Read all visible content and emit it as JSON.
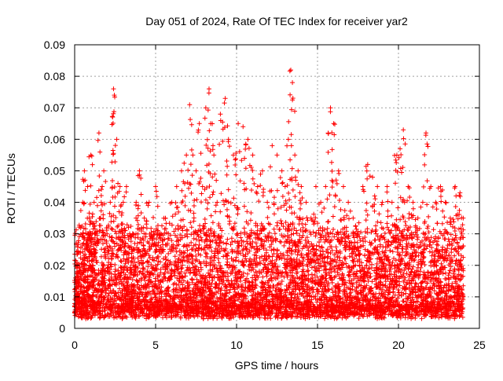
{
  "chart_data": {
    "type": "scatter",
    "title": "Day 051 of 2024, Rate Of TEC Index for receiver yar2",
    "xlabel": "GPS time / hours",
    "ylabel": "ROTI / TECUs",
    "xlim": [
      0,
      25
    ],
    "ylim": [
      0,
      0.09
    ],
    "x_ticks": [
      0,
      5,
      10,
      15,
      20,
      25
    ],
    "x_tick_labels": [
      "0",
      "5",
      "10",
      "15",
      "20",
      "25"
    ],
    "y_ticks": [
      0,
      0.01,
      0.02,
      0.03,
      0.04,
      0.05,
      0.06,
      0.07,
      0.08,
      0.09
    ],
    "y_tick_labels": [
      "0",
      "0.01",
      "0.02",
      "0.03",
      "0.04",
      "0.05",
      "0.06",
      "0.07",
      "0.08",
      "0.09"
    ],
    "grid": true,
    "marker": "plus",
    "color": "#ff0000",
    "series": [
      {
        "name": "ROTI",
        "x": [
          0.05,
          0.1,
          0.15,
          0.2,
          0.3,
          0.5,
          0.6,
          0.7,
          0.8,
          0.9,
          1.0,
          1.1,
          1.2,
          1.3,
          1.5,
          1.6,
          1.7,
          1.8,
          2.0,
          2.2,
          2.4,
          2.45,
          2.6,
          2.8,
          3.0,
          3.2,
          3.4,
          3.6,
          3.8,
          4.0,
          4.3,
          4.6,
          5.0,
          5.3,
          5.6,
          6.0,
          6.3,
          6.6,
          6.9,
          7.1,
          7.3,
          7.5,
          7.7,
          7.9,
          8.1,
          8.3,
          8.4,
          8.6,
          8.8,
          9.0,
          9.3,
          9.5,
          9.8,
          10.1,
          10.4,
          10.7,
          11.0,
          11.3,
          11.6,
          11.9,
          12.2,
          12.5,
          12.8,
          13.0,
          13.2,
          13.35,
          13.45,
          13.6,
          13.8,
          14.0,
          14.3,
          14.6,
          14.9,
          15.2,
          15.5,
          15.8,
          16.0,
          16.3,
          16.6,
          16.9,
          17.2,
          17.5,
          17.8,
          18.1,
          18.4,
          18.7,
          19.0,
          19.3,
          19.6,
          19.9,
          20.1,
          20.3,
          20.6,
          20.9,
          21.2,
          21.5,
          21.7,
          22.0,
          22.3,
          22.6,
          22.9,
          23.2,
          23.5,
          23.8,
          24.0
        ],
        "y": [
          0.005,
          0.027,
          0.015,
          0.02,
          0.01,
          0.04,
          0.05,
          0.03,
          0.045,
          0.035,
          0.055,
          0.02,
          0.04,
          0.03,
          0.062,
          0.035,
          0.045,
          0.05,
          0.03,
          0.04,
          0.076,
          0.074,
          0.06,
          0.045,
          0.04,
          0.045,
          0.03,
          0.025,
          0.04,
          0.05,
          0.035,
          0.04,
          0.045,
          0.03,
          0.035,
          0.04,
          0.045,
          0.05,
          0.055,
          0.071,
          0.055,
          0.05,
          0.065,
          0.045,
          0.07,
          0.076,
          0.065,
          0.055,
          0.04,
          0.068,
          0.073,
          0.06,
          0.055,
          0.065,
          0.064,
          0.06,
          0.055,
          0.045,
          0.05,
          0.04,
          0.058,
          0.055,
          0.05,
          0.045,
          0.06,
          0.082,
          0.078,
          0.055,
          0.05,
          0.045,
          0.04,
          0.035,
          0.045,
          0.04,
          0.045,
          0.07,
          0.065,
          0.05,
          0.045,
          0.04,
          0.035,
          0.03,
          0.045,
          0.052,
          0.048,
          0.045,
          0.04,
          0.045,
          0.04,
          0.055,
          0.057,
          0.063,
          0.045,
          0.04,
          0.035,
          0.04,
          0.062,
          0.045,
          0.04,
          0.045,
          0.04,
          0.035,
          0.045,
          0.043,
          0.035
        ]
      }
    ],
    "bulk_band": {
      "description_values": "dense cloud of points between 0.003 and about 0.03 across 0 to 24 hours",
      "y_min": 0.003,
      "y_max": 0.03,
      "x_min": 0.0,
      "x_max": 24.0
    }
  }
}
